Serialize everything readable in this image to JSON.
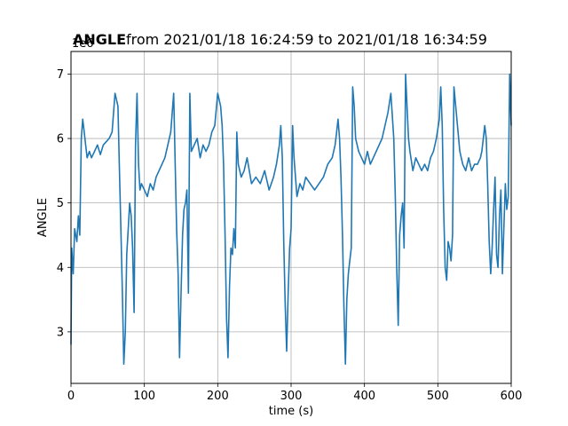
{
  "chart_data": {
    "type": "line",
    "title_bold": "ANGLE",
    "title_rest": " from 2021/01/18 16:24:59 to 2021/01/18 16:34:59",
    "xlabel": "time (s)",
    "ylabel": "ANGLE",
    "y_offset_label": "1e6",
    "xlim": [
      0,
      600
    ],
    "ylim": [
      2.2,
      7.35
    ],
    "xticks": [
      0,
      100,
      200,
      300,
      400,
      500,
      600
    ],
    "xtick_labels": [
      "0",
      "100",
      "200",
      "300",
      "400",
      "500",
      "600"
    ],
    "yticks": [
      3,
      4,
      5,
      6,
      7
    ],
    "ytick_labels": [
      "3",
      "4",
      "5",
      "6",
      "7"
    ],
    "grid": true,
    "line_color": "#1f77b4",
    "series": [
      {
        "x": [
          0,
          1,
          3,
          5,
          8,
          10,
          12,
          14,
          16,
          18,
          20,
          22,
          25,
          28,
          32,
          36,
          40,
          44,
          48,
          52,
          56,
          60,
          62,
          64,
          66,
          68,
          70,
          72,
          74,
          76,
          78,
          80,
          82,
          84,
          86,
          88,
          90,
          92,
          94,
          96,
          100,
          104,
          108,
          112,
          116,
          120,
          124,
          128,
          132,
          136,
          140,
          142,
          144,
          146,
          148,
          150,
          152,
          154,
          156,
          158,
          160,
          162,
          164,
          168,
          172,
          176,
          180,
          184,
          188,
          192,
          196,
          200,
          204,
          206,
          208,
          210,
          212,
          214,
          216,
          218,
          220,
          222,
          224,
          226,
          228,
          232,
          236,
          240,
          246,
          252,
          258,
          264,
          270,
          276,
          280,
          284,
          286,
          288,
          290,
          292,
          294,
          296,
          298,
          300,
          302,
          304,
          308,
          312,
          316,
          320,
          326,
          332,
          338,
          344,
          350,
          356,
          360,
          362,
          364,
          366,
          368,
          370,
          372,
          374,
          376,
          378,
          380,
          382,
          384,
          386,
          388,
          392,
          396,
          400,
          404,
          408,
          412,
          416,
          420,
          424,
          428,
          432,
          436,
          440,
          442,
          444,
          446,
          448,
          450,
          452,
          454,
          456,
          458,
          460,
          462,
          466,
          470,
          474,
          478,
          482,
          486,
          490,
          494,
          498,
          502,
          504,
          506,
          508,
          510,
          512,
          514,
          516,
          518,
          520,
          522,
          526,
          530,
          534,
          538,
          542,
          546,
          550,
          554,
          558,
          560,
          562,
          564,
          566,
          568,
          570,
          572,
          574,
          576,
          578,
          580,
          582,
          584,
          586,
          588,
          590,
          592,
          594,
          596,
          598,
          600
        ],
        "y": [
          2.8,
          4.3,
          3.9,
          4.6,
          4.4,
          4.8,
          4.5,
          6.0,
          6.3,
          6.1,
          5.9,
          5.7,
          5.8,
          5.7,
          5.8,
          5.9,
          5.75,
          5.9,
          5.95,
          6.0,
          6.1,
          6.7,
          6.6,
          6.5,
          5.5,
          4.6,
          3.6,
          2.5,
          3.0,
          4.2,
          4.6,
          5.0,
          4.8,
          4.3,
          3.3,
          5.9,
          6.7,
          5.6,
          5.2,
          5.3,
          5.2,
          5.1,
          5.3,
          5.2,
          5.4,
          5.5,
          5.6,
          5.7,
          5.9,
          6.1,
          6.7,
          5.6,
          4.6,
          3.9,
          2.6,
          3.6,
          4.5,
          4.9,
          5.0,
          5.2,
          3.6,
          6.7,
          5.8,
          5.9,
          6.0,
          5.7,
          5.9,
          5.8,
          5.9,
          6.1,
          6.2,
          6.7,
          6.5,
          6.2,
          5.6,
          4.5,
          3.2,
          2.6,
          3.7,
          4.3,
          4.2,
          4.6,
          4.3,
          6.1,
          5.6,
          5.4,
          5.5,
          5.7,
          5.3,
          5.4,
          5.3,
          5.5,
          5.2,
          5.4,
          5.6,
          5.9,
          6.2,
          5.7,
          4.4,
          3.4,
          2.7,
          3.6,
          4.3,
          4.6,
          6.2,
          5.7,
          5.1,
          5.3,
          5.2,
          5.4,
          5.3,
          5.2,
          5.3,
          5.4,
          5.6,
          5.7,
          5.9,
          6.1,
          6.3,
          6.0,
          5.4,
          4.5,
          3.4,
          2.5,
          3.5,
          3.9,
          4.1,
          4.3,
          6.8,
          6.5,
          6.0,
          5.8,
          5.7,
          5.6,
          5.8,
          5.6,
          5.7,
          5.8,
          5.9,
          6.0,
          6.2,
          6.4,
          6.7,
          6.0,
          5.1,
          4.0,
          3.1,
          4.5,
          4.8,
          5.0,
          4.3,
          7.0,
          6.5,
          6.0,
          5.8,
          5.5,
          5.7,
          5.6,
          5.5,
          5.6,
          5.5,
          5.7,
          5.8,
          6.0,
          6.3,
          6.8,
          6.2,
          4.9,
          4.0,
          3.8,
          4.4,
          4.3,
          4.1,
          4.5,
          6.8,
          6.3,
          5.8,
          5.6,
          5.5,
          5.7,
          5.5,
          5.6,
          5.6,
          5.7,
          5.8,
          6.0,
          6.2,
          6.0,
          5.3,
          4.4,
          3.9,
          4.3,
          4.9,
          5.4,
          4.2,
          4.0,
          4.8,
          5.2,
          3.9,
          4.6,
          5.3,
          4.9,
          5.1,
          7.0,
          6.2
        ]
      }
    ]
  }
}
